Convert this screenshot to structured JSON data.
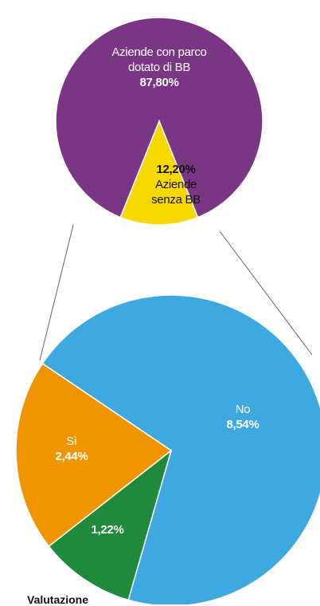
{
  "chart_data": [
    {
      "type": "pie",
      "categories": [
        "Aziende con parco dotato di BB",
        "Aziende senza BB"
      ],
      "values": [
        87.8,
        12.2
      ],
      "value_labels": [
        "87,80%",
        "12,20%"
      ],
      "colors": [
        "#7b3585",
        "#f7d900"
      ]
    },
    {
      "type": "pie",
      "categories": [
        "No",
        null,
        "Sì"
      ],
      "values": [
        8.54,
        1.22,
        2.44
      ],
      "value_labels": [
        "8,54%",
        "1,22%",
        "2,44%"
      ],
      "colors": [
        "#3ea8e0",
        "#1f8a3c",
        "#f09400"
      ],
      "annotation": "Valutazione"
    }
  ]
}
